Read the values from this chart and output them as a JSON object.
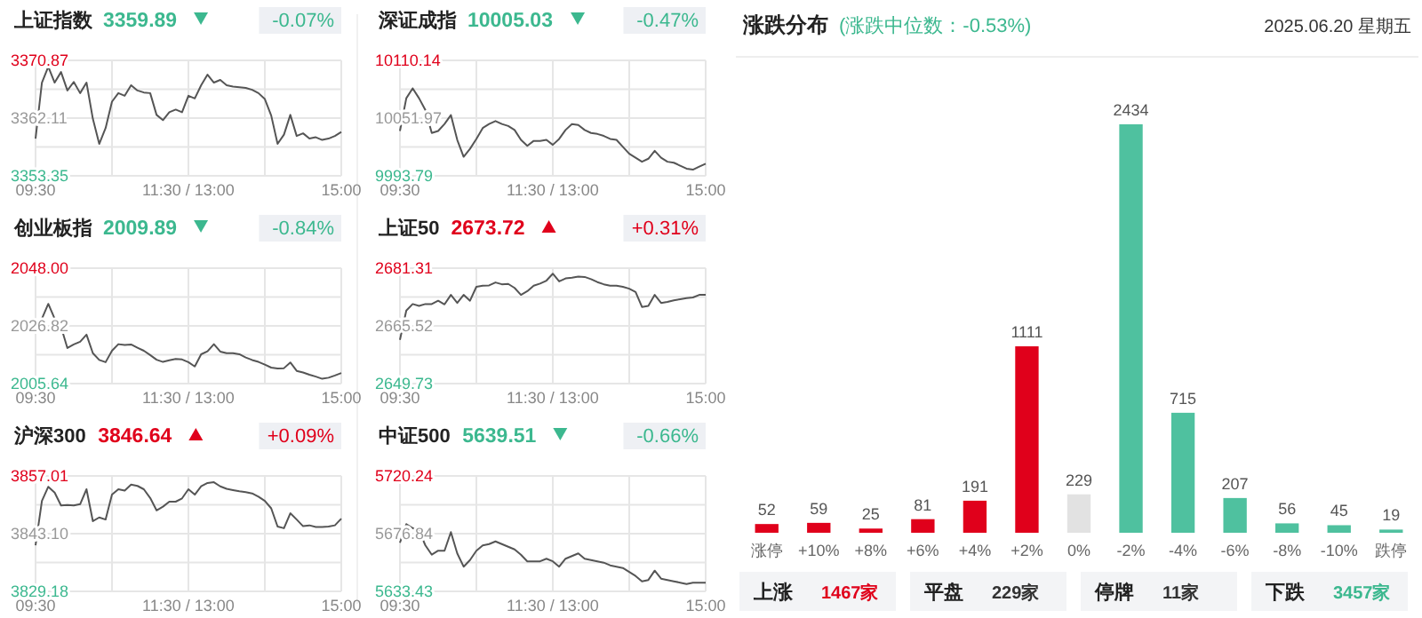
{
  "chart_data": [
    {
      "type": "line",
      "title": "上证指数",
      "subtitle": "3359.89",
      "annotations": [
        "-0.07%"
      ],
      "grid": true,
      "ylim": [
        3353.35,
        3370.87
      ],
      "categories": [
        "09:30",
        null,
        null,
        null,
        null,
        null,
        null,
        null,
        null,
        null,
        null,
        null,
        null,
        null,
        null,
        null,
        null,
        null,
        null,
        null,
        null,
        null,
        null,
        null,
        "11:30 / 13:00",
        null,
        null,
        null,
        null,
        null,
        null,
        null,
        null,
        null,
        null,
        null,
        null,
        null,
        null,
        null,
        null,
        null,
        null,
        null,
        null,
        null,
        null,
        null,
        "15:00"
      ],
      "yticks": [
        {
          "value": 3353.35,
          "label": "3353.35"
        },
        {
          "value": 3357.73,
          "label": null
        },
        {
          "value": 3362.11,
          "label": "3362.11"
        },
        {
          "value": 3366.49,
          "label": null
        },
        {
          "value": 3370.87,
          "label": "3370.87"
        }
      ],
      "series": [
        {
          "color": "#555555",
          "values": [
            3359.0,
            3367.5,
            3369.9,
            3367.5,
            3369.1,
            3366.3,
            3367.6,
            3365.9,
            3367.5,
            3362.0,
            3358.2,
            3360.6,
            3364.6,
            3365.9,
            3365.5,
            3367.1,
            3366.3,
            3366.0,
            3365.9,
            3362.6,
            3361.8,
            3363.0,
            3363.4,
            3363.0,
            3365.5,
            3365.1,
            3367.1,
            3368.7,
            3367.5,
            3367.9,
            3367.1,
            3366.9,
            3366.8,
            3366.7,
            3366.4,
            3365.9,
            3365.0,
            3362.5,
            3358.2,
            3359.6,
            3362.6,
            3359.4,
            3359.8,
            3359.0,
            3359.2,
            3358.8,
            3359.0,
            3359.4,
            3360.0
          ]
        }
      ]
    },
    {
      "type": "line",
      "title": "深证成指",
      "subtitle": "10005.03",
      "annotations": [
        "-0.47%"
      ],
      "grid": true,
      "ylim": [
        9993.79,
        10110.14
      ],
      "categories": [
        "09:30",
        null,
        null,
        null,
        null,
        null,
        null,
        null,
        null,
        null,
        null,
        null,
        null,
        null,
        null,
        null,
        null,
        null,
        null,
        null,
        null,
        null,
        null,
        null,
        "11:30 / 13:00",
        null,
        null,
        null,
        null,
        null,
        null,
        null,
        null,
        null,
        null,
        null,
        null,
        null,
        null,
        null,
        null,
        null,
        null,
        null,
        null,
        null,
        null,
        null,
        "15:00"
      ],
      "yticks": [
        {
          "value": 9993.79,
          "label": "9993.79"
        },
        {
          "value": 10022.88,
          "label": null
        },
        {
          "value": 10051.97,
          "label": "10051.97"
        },
        {
          "value": 10081.05,
          "label": null
        },
        {
          "value": 10110.14,
          "label": "10110.14"
        }
      ],
      "series": [
        {
          "color": "#555555",
          "values": [
            10039,
            10072,
            10082,
            10072,
            10060,
            10037,
            10039,
            10046,
            10055,
            10030,
            10013,
            10021,
            10031,
            10042,
            10046,
            10049,
            10046,
            10044,
            10040,
            10030,
            10024,
            10029,
            10029,
            10030,
            10025,
            10031,
            10040,
            10046,
            10045,
            10040,
            10037,
            10036,
            10034,
            10031,
            10030,
            10023,
            10016,
            10012,
            10008,
            10011,
            10019,
            10012,
            10008,
            10007,
            10004,
            10001,
            10000,
            10003,
            10006
          ]
        }
      ]
    },
    {
      "type": "line",
      "title": "创业板指",
      "subtitle": "2009.89",
      "annotations": [
        "-0.84%"
      ],
      "grid": true,
      "ylim": [
        2005.64,
        2048.0
      ],
      "categories": [
        "09:30",
        null,
        null,
        null,
        null,
        null,
        null,
        null,
        null,
        null,
        null,
        null,
        null,
        null,
        null,
        null,
        null,
        null,
        null,
        null,
        null,
        null,
        null,
        null,
        "11:30 / 13:00",
        null,
        null,
        null,
        null,
        null,
        null,
        null,
        null,
        null,
        null,
        null,
        null,
        null,
        null,
        null,
        null,
        null,
        null,
        null,
        null,
        null,
        null,
        null,
        "15:00"
      ],
      "yticks": [
        {
          "value": 2005.64,
          "label": "2005.64"
        },
        {
          "value": 2016.23,
          "label": null
        },
        {
          "value": 2026.82,
          "label": "2026.82"
        },
        {
          "value": 2037.41,
          "label": null
        },
        {
          "value": 2048.0,
          "label": "2048.00"
        }
      ],
      "series": [
        {
          "color": "#555555",
          "values": [
            2027.5,
            2029.5,
            2034.9,
            2029.5,
            2026.5,
            2018.7,
            2020.0,
            2021.0,
            2023.6,
            2016.8,
            2014.3,
            2013.5,
            2017.7,
            2020.1,
            2019.8,
            2020.0,
            2018.8,
            2017.7,
            2016.1,
            2014.4,
            2013.6,
            2014.2,
            2014.7,
            2014.5,
            2013.5,
            2011.9,
            2016.4,
            2017.5,
            2020.1,
            2017.4,
            2016.8,
            2016.8,
            2016.4,
            2015.2,
            2014.3,
            2013.6,
            2012.6,
            2011.5,
            2011.2,
            2011.3,
            2013.4,
            2010.3,
            2009.7,
            2008.9,
            2008.2,
            2007.4,
            2007.8,
            2008.6,
            2009.5
          ]
        }
      ]
    },
    {
      "type": "line",
      "title": "上证50",
      "subtitle": "2673.72",
      "annotations": [
        "+0.31%"
      ],
      "grid": true,
      "ylim": [
        2649.73,
        2681.31
      ],
      "categories": [
        "09:30",
        null,
        null,
        null,
        null,
        null,
        null,
        null,
        null,
        null,
        null,
        null,
        null,
        null,
        null,
        null,
        null,
        null,
        null,
        null,
        null,
        null,
        null,
        null,
        "11:30 / 13:00",
        null,
        null,
        null,
        null,
        null,
        null,
        null,
        null,
        null,
        null,
        null,
        null,
        null,
        null,
        null,
        null,
        null,
        null,
        null,
        null,
        null,
        null,
        null,
        "15:00"
      ],
      "yticks": [
        {
          "value": 2649.73,
          "label": "2649.73"
        },
        {
          "value": 2657.63,
          "label": null
        },
        {
          "value": 2665.52,
          "label": "2665.52"
        },
        {
          "value": 2673.41,
          "label": null
        },
        {
          "value": 2681.31,
          "label": "2681.31"
        }
      ],
      "series": [
        {
          "color": "#555555",
          "values": [
            2661.7,
            2669.7,
            2671.5,
            2671.0,
            2671.5,
            2671.5,
            2672.4,
            2671.4,
            2674.0,
            2671.8,
            2674.0,
            2672.4,
            2676.2,
            2676.5,
            2676.6,
            2677.4,
            2676.9,
            2677.0,
            2675.9,
            2674.0,
            2675.0,
            2676.5,
            2677.1,
            2677.9,
            2679.8,
            2677.7,
            2678.5,
            2678.7,
            2679.0,
            2678.9,
            2678.3,
            2677.5,
            2676.9,
            2676.5,
            2676.5,
            2676.2,
            2675.7,
            2674.8,
            2670.7,
            2671.0,
            2674.0,
            2671.8,
            2672.1,
            2672.5,
            2672.8,
            2673.1,
            2673.3,
            2674.0,
            2674.0
          ]
        }
      ]
    },
    {
      "type": "line",
      "title": "沪深300",
      "subtitle": "3846.64",
      "annotations": [
        "+0.09%"
      ],
      "grid": true,
      "ylim": [
        3829.18,
        3857.01
      ],
      "categories": [
        "09:30",
        null,
        null,
        null,
        null,
        null,
        null,
        null,
        null,
        null,
        null,
        null,
        null,
        null,
        null,
        null,
        null,
        null,
        null,
        null,
        null,
        null,
        null,
        null,
        "11:30 / 13:00",
        null,
        null,
        null,
        null,
        null,
        null,
        null,
        null,
        null,
        null,
        null,
        null,
        null,
        null,
        null,
        null,
        null,
        null,
        null,
        null,
        null,
        null,
        null,
        "15:00"
      ],
      "yticks": [
        {
          "value": 3829.18,
          "label": "3829.18"
        },
        {
          "value": 3836.14,
          "label": null
        },
        {
          "value": 3843.1,
          "label": "3843.10"
        },
        {
          "value": 3850.05,
          "label": null
        },
        {
          "value": 3857.01,
          "label": "3857.01"
        }
      ],
      "series": [
        {
          "color": "#555555",
          "values": [
            3840.3,
            3851.0,
            3854.4,
            3853.0,
            3849.9,
            3850.0,
            3849.9,
            3850.2,
            3853.8,
            3846.1,
            3847.0,
            3846.5,
            3852.5,
            3853.8,
            3853.5,
            3854.9,
            3854.6,
            3853.8,
            3851.7,
            3848.7,
            3849.6,
            3850.8,
            3850.8,
            3851.6,
            3853.8,
            3852.5,
            3854.5,
            3855.3,
            3855.5,
            3854.5,
            3853.9,
            3853.6,
            3853.3,
            3853.1,
            3852.8,
            3852.0,
            3851.0,
            3849.2,
            3844.8,
            3844.4,
            3848.0,
            3846.5,
            3844.9,
            3845.1,
            3844.7,
            3844.7,
            3844.8,
            3845.1,
            3846.7
          ]
        }
      ]
    },
    {
      "type": "line",
      "title": "中证500",
      "subtitle": "5639.51",
      "annotations": [
        "-0.66%"
      ],
      "grid": true,
      "ylim": [
        5633.43,
        5720.24
      ],
      "categories": [
        "09:30",
        null,
        null,
        null,
        null,
        null,
        null,
        null,
        null,
        null,
        null,
        null,
        null,
        null,
        null,
        null,
        null,
        null,
        null,
        null,
        null,
        null,
        null,
        null,
        "11:30 / 13:00",
        null,
        null,
        null,
        null,
        null,
        null,
        null,
        null,
        null,
        null,
        null,
        null,
        null,
        null,
        null,
        null,
        null,
        null,
        null,
        null,
        null,
        null,
        null,
        "15:00"
      ],
      "yticks": [
        {
          "value": 5633.43,
          "label": "5633.43"
        },
        {
          "value": 5655.13,
          "label": null
        },
        {
          "value": 5676.84,
          "label": "5676.84"
        },
        {
          "value": 5698.54,
          "label": null
        },
        {
          "value": 5720.24,
          "label": "5720.24"
        }
      ],
      "series": [
        {
          "color": "#555555",
          "values": [
            5670,
            5684,
            5681,
            5679,
            5668,
            5661,
            5664,
            5664,
            5678,
            5662,
            5652,
            5657,
            5664,
            5668,
            5669,
            5671,
            5669,
            5667,
            5665,
            5661,
            5656,
            5656,
            5656,
            5658,
            5656,
            5652,
            5658,
            5660,
            5662,
            5658,
            5657,
            5656,
            5655,
            5653,
            5652,
            5651,
            5648,
            5645,
            5641,
            5642,
            5649,
            5643,
            5642,
            5641,
            5640,
            5639,
            5640,
            5640,
            5640
          ]
        }
      ]
    },
    {
      "type": "bar",
      "title": "涨跌分布",
      "subtitle": "(涨跌中位数：-0.53%)",
      "data_labels": true,
      "annotations": [
        "2025.06.20 星期五",
        "上涨",
        "1467家",
        "平盘",
        "229家",
        "停牌",
        "11家",
        "下跌",
        "3457家"
      ],
      "categories": [
        "涨停",
        "+10%",
        "+8%",
        "+6%",
        "+4%",
        "+2%",
        "0%",
        "-2%",
        "-4%",
        "-6%",
        "-8%",
        "-10%",
        "跌停"
      ],
      "values": [
        52,
        59,
        25,
        81,
        191,
        1111,
        229,
        2434,
        715,
        207,
        56,
        45,
        19
      ],
      "colors": [
        "#e0001b",
        "#e0001b",
        "#e0001b",
        "#e0001b",
        "#e0001b",
        "#e0001b",
        "#e2e2e2",
        "#4fc19f",
        "#4fc19f",
        "#4fc19f",
        "#4fc19f",
        "#4fc19f",
        "#4fc19f"
      ]
    }
  ]
}
